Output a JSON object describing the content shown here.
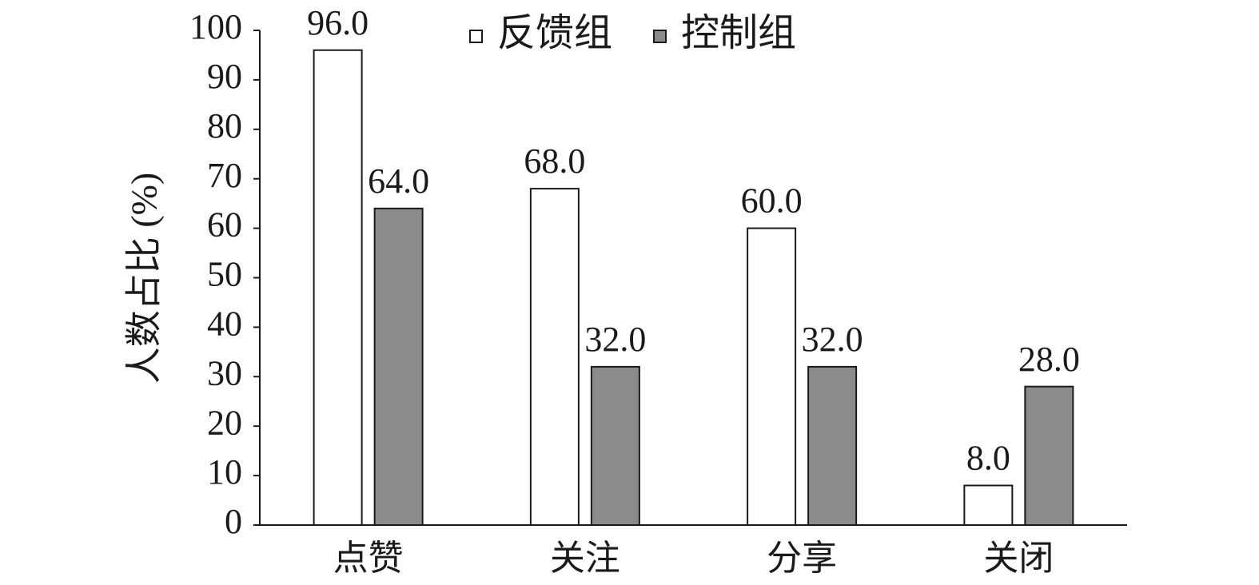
{
  "chart_data": {
    "type": "bar",
    "y_label": "人数占比 (%)",
    "categories": [
      "点赞",
      "关注",
      "分享",
      "关闭"
    ],
    "series": [
      {
        "name": "反馈组",
        "color": "#ffffff",
        "values": [
          96,
          68,
          60,
          8
        ],
        "value_labels": [
          "96.0",
          "68.0",
          "60.0",
          "8.0"
        ]
      },
      {
        "name": "控制组",
        "color": "#8c8b8b",
        "values": [
          64,
          32,
          32,
          28
        ],
        "value_labels": [
          "64.0",
          "32.0",
          "32.0",
          "28.0"
        ]
      }
    ],
    "ylim": [
      0,
      100
    ],
    "yticks": [
      0,
      10,
      20,
      30,
      40,
      50,
      60,
      70,
      80,
      90,
      100
    ],
    "legend": "top"
  }
}
